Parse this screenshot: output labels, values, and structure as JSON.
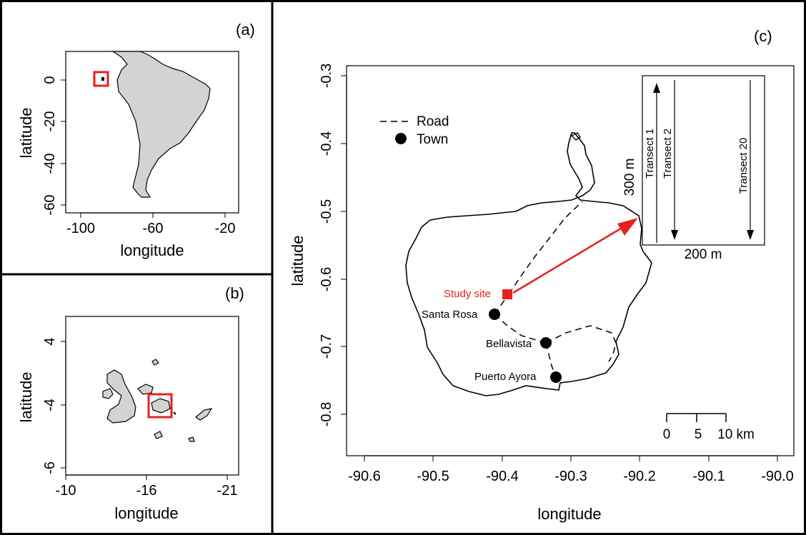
{
  "panels": {
    "a": {
      "label": "(a)",
      "xlabel": "longitude",
      "ylabel": "latitude",
      "xticks": [
        "-100",
        "-60",
        "-20"
      ],
      "yticks": [
        "0",
        "-20",
        "-40",
        "-60"
      ]
    },
    "b": {
      "label": "(b)",
      "xlabel": "longitude",
      "ylabel": "latitude",
      "xticks": [
        "-10",
        "-16",
        "-21"
      ],
      "yticks": [
        "4",
        "-4",
        "-6"
      ]
    },
    "c": {
      "label": "(c)",
      "xlabel": "longitude",
      "ylabel": "latitude",
      "xticks": [
        "-90.6",
        "-90.5",
        "-90.4",
        "-90.3",
        "-90.2",
        "-90.1",
        "-90.0"
      ],
      "yticks": [
        "-0.3",
        "-0.4",
        "-0.5",
        "-0.6",
        "-0.7",
        "-0.8"
      ],
      "legend": {
        "road": "Road",
        "town": "Town"
      },
      "study_site": "Study site",
      "towns": [
        "Santa Rosa",
        "Bellavista",
        "Puerto Ayora"
      ],
      "scale": {
        "ticks": [
          "0",
          "5",
          "10 km"
        ]
      },
      "inset": {
        "transects": [
          "Transect 1",
          "Transect 2",
          "Transect 20"
        ],
        "height_label": "300 m",
        "width_label": "200 m"
      }
    }
  },
  "colors": {
    "highlight": "#e8201c",
    "land": "#d3d3d3",
    "outline": "#000000"
  }
}
